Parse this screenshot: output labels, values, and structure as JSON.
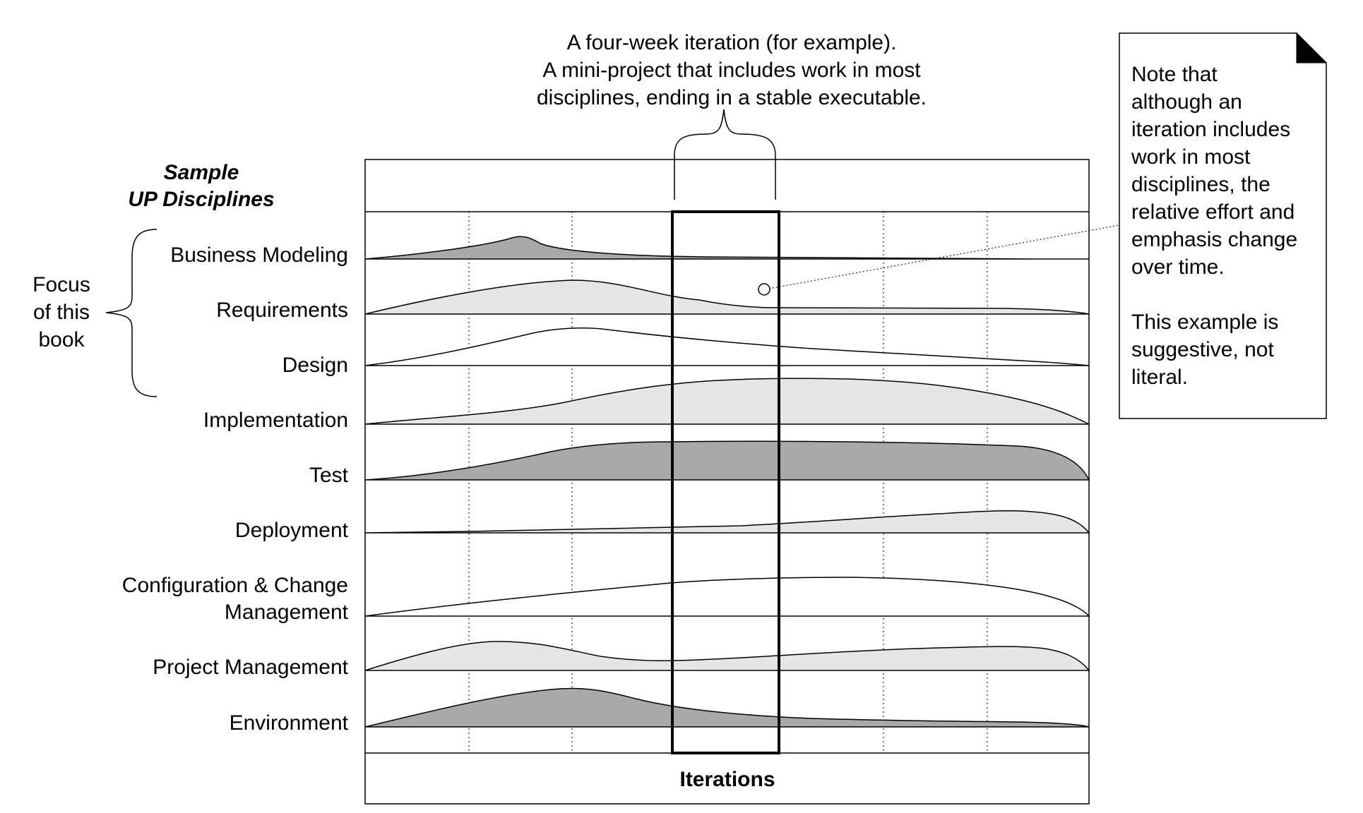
{
  "header": {
    "title_line1": "Sample",
    "title_line2": "UP Disciplines"
  },
  "callout": {
    "line1": "A four-week iteration (for example).",
    "line2": "A mini-project that includes work in most",
    "line3": "disciplines, ending in a stable executable."
  },
  "focus": {
    "line1": "Focus",
    "line2": "of this",
    "line3": "book"
  },
  "note": {
    "lines": [
      "Note that",
      "although an",
      "iteration includes",
      "work in most",
      "disciplines, the",
      "relative effort and",
      "emphasis change",
      "over time.",
      "",
      "This example is",
      "suggestive, not",
      "literal."
    ]
  },
  "footer": {
    "label": "Iterations"
  },
  "disciplines": [
    {
      "name": "Business Modeling",
      "line2": "",
      "fill": "#a9a9a9"
    },
    {
      "name": "Requirements",
      "line2": "",
      "fill": "#e6e6e6"
    },
    {
      "name": "Design",
      "line2": "",
      "fill": "#ffffff"
    },
    {
      "name": "Implementation",
      "line2": "",
      "fill": "#e6e6e6"
    },
    {
      "name": "Test",
      "line2": "",
      "fill": "#a9a9a9"
    },
    {
      "name": "Deployment",
      "line2": "",
      "fill": "#e6e6e6"
    },
    {
      "name": "Configuration & Change",
      "line2": "Management",
      "fill": "#ffffff"
    },
    {
      "name": "Project Management",
      "line2": "",
      "fill": "#e6e6e6"
    },
    {
      "name": "Environment",
      "line2": "",
      "fill": "#a9a9a9"
    }
  ],
  "colors": {
    "dark_fill": "#a9a9a9",
    "light_fill": "#e6e6e6",
    "line": "#000000"
  }
}
